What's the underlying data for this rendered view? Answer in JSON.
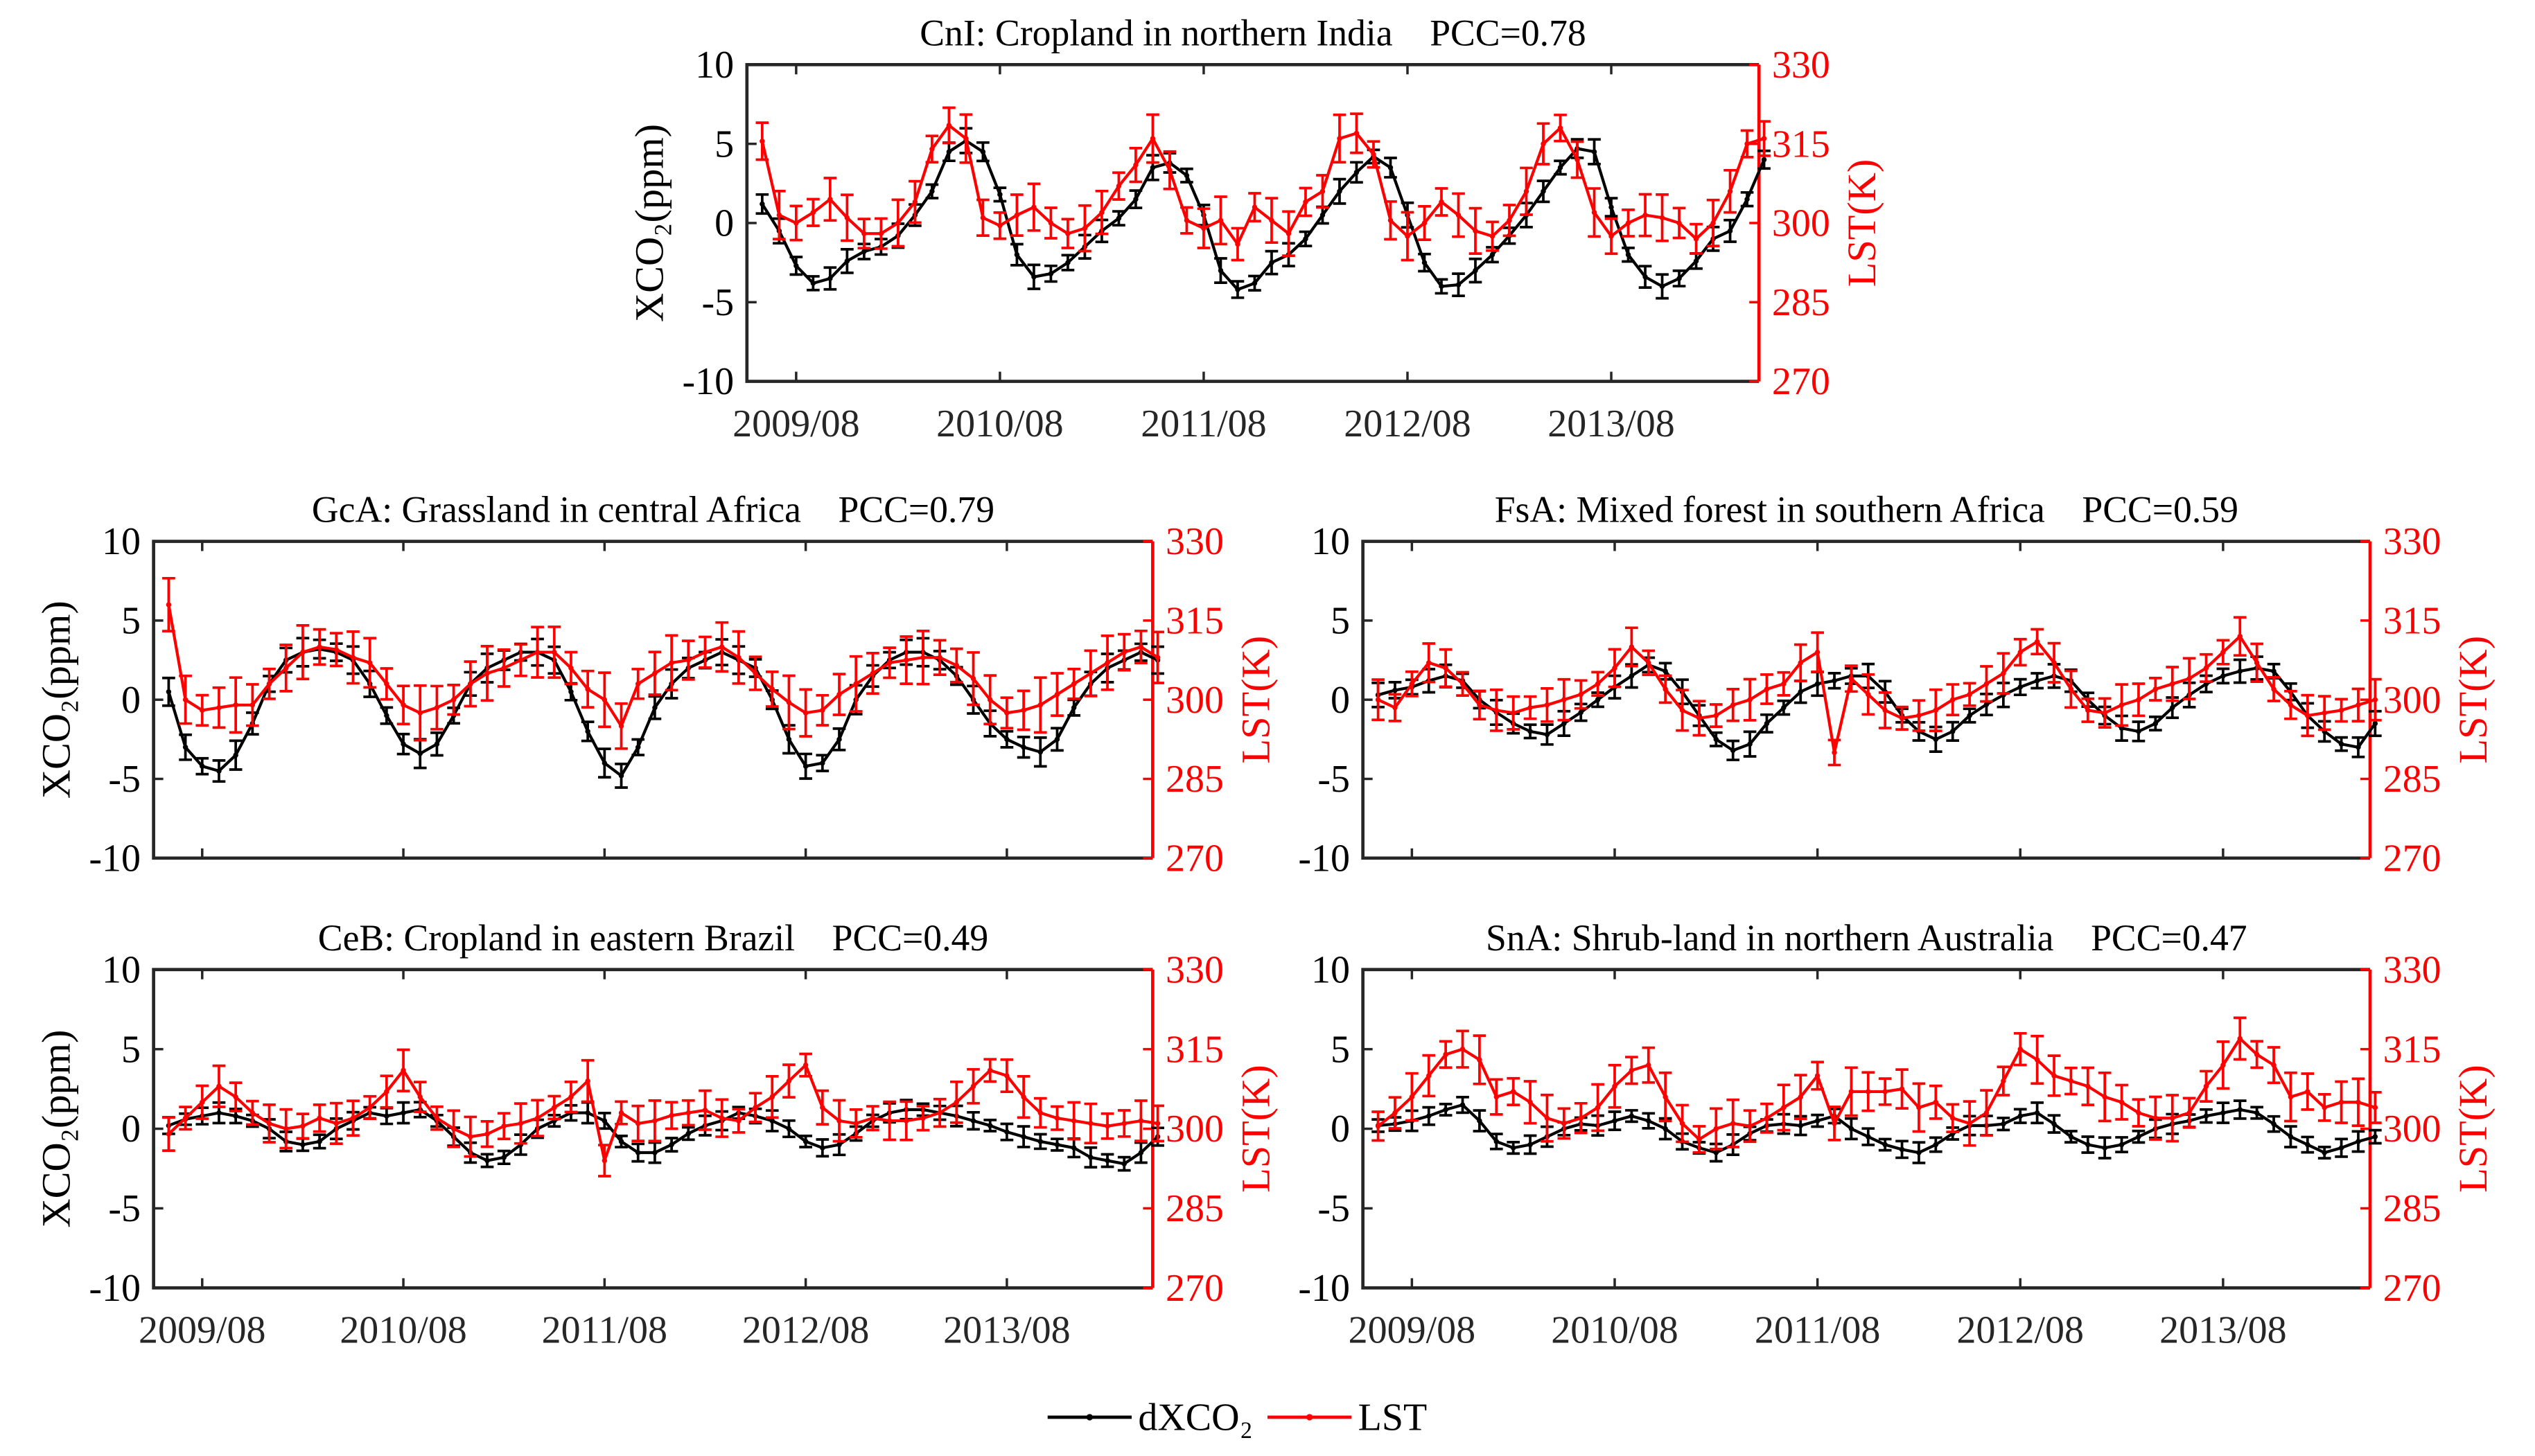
{
  "chart_data": [
    {
      "id": "CnI",
      "type": "line",
      "title": "CnI: Cropland in northern India   PCC=0.78",
      "ylabel": "XCO₂(ppm)",
      "y2label": "LST(K)",
      "ylim": [
        -10,
        10
      ],
      "y2lim": [
        270,
        330
      ],
      "yticks": [
        "10",
        "5",
        "0",
        "-5",
        "-10"
      ],
      "y2ticks": [
        "330",
        "315",
        "300",
        "285",
        "270"
      ],
      "xticks": [
        "2009/08",
        "2010/08",
        "2011/08",
        "2012/08",
        "2013/08"
      ],
      "x_start": "2009/06",
      "x_end": "2014/05",
      "x_unit": "month",
      "series": [
        {
          "name": "dXCO₂",
          "color": "#000000",
          "error": 0.6,
          "values": [
            1.2,
            -0.5,
            -2.7,
            -3.8,
            -3.5,
            -2.4,
            -1.8,
            -1.5,
            -0.8,
            0.5,
            2.0,
            4.5,
            5.2,
            4.5,
            1.8,
            -2.0,
            -3.4,
            -3.2,
            -2.5,
            -1.5,
            -0.5,
            0.3,
            1.5,
            3.5,
            3.8,
            3.0,
            0.5,
            -3.0,
            -4.2,
            -3.8,
            -2.5,
            -2.0,
            -1.0,
            0.5,
            2.0,
            3.2,
            4.2,
            3.5,
            0.5,
            -2.5,
            -4.0,
            -3.9,
            -3.0,
            -2.0,
            -0.8,
            0.5,
            2.0,
            3.5,
            4.7,
            4.5,
            1.0,
            -2.0,
            -3.4,
            -4.0,
            -3.5,
            -2.4,
            -1.0,
            -0.5,
            1.5,
            4.0
          ]
        },
        {
          "name": "LST",
          "color": "#ff0000",
          "error": 3.5,
          "values": [
            315.5,
            301.5,
            300,
            302,
            304.5,
            301,
            298,
            298,
            300,
            304,
            314,
            318.5,
            316,
            301,
            299.5,
            301.5,
            303,
            300,
            298,
            299,
            302,
            307,
            311,
            316,
            310,
            300.5,
            299,
            300.5,
            296,
            303,
            300.5,
            298,
            304,
            306,
            316,
            317,
            313,
            300.5,
            297.5,
            300,
            304,
            301.5,
            298.5,
            297.5,
            300.5,
            306,
            315,
            318,
            312,
            302,
            297.5,
            300,
            301.5,
            301,
            300,
            297,
            300,
            306,
            315,
            316
          ]
        }
      ]
    },
    {
      "id": "GcA",
      "type": "line",
      "title": "GcA: Grassland in central Africa   PCC=0.79",
      "ylabel": "XCO₂(ppm)",
      "y2label": "LST(K)",
      "ylim": [
        -10,
        10
      ],
      "y2lim": [
        270,
        330
      ],
      "yticks": [
        "10",
        "5",
        "0",
        "-5",
        "-10"
      ],
      "y2ticks": [
        "330",
        "315",
        "300",
        "285",
        "270"
      ],
      "xticks": [],
      "x_start": "2009/06",
      "x_end": "2014/05",
      "x_unit": "month",
      "series": [
        {
          "name": "dXCO₂",
          "color": "#000000",
          "error": 0.7,
          "values": [
            0.5,
            -3.0,
            -4.2,
            -4.5,
            -3.5,
            -1.5,
            1.0,
            2.5,
            3.0,
            3.2,
            3.0,
            2.5,
            1.0,
            -1.0,
            -2.8,
            -3.4,
            -2.8,
            -1.0,
            1.0,
            2.0,
            2.5,
            3.0,
            3.0,
            2.5,
            0.5,
            -2.0,
            -4.0,
            -4.8,
            -3.0,
            -0.5,
            1.0,
            2.0,
            2.5,
            3.0,
            2.5,
            2.0,
            0.0,
            -2.5,
            -4.2,
            -4.0,
            -2.5,
            0.0,
            1.5,
            2.5,
            3.0,
            3.0,
            2.5,
            1.5,
            0.0,
            -1.5,
            -2.5,
            -3.0,
            -3.3,
            -2.5,
            -0.5,
            1.0,
            2.0,
            2.5,
            3.0,
            2.5
          ]
        },
        {
          "name": "LST",
          "color": "#ff0000",
          "error": 4.0,
          "values": [
            318,
            300,
            298,
            298.5,
            299,
            299,
            303,
            306,
            309,
            310,
            309.5,
            308,
            307,
            303,
            299,
            297.5,
            298.5,
            300,
            303,
            305,
            306,
            307.5,
            309,
            309,
            306,
            302,
            300,
            295,
            303,
            305,
            307,
            307.5,
            309,
            310,
            308,
            305,
            302,
            299.5,
            297.5,
            298,
            301,
            303,
            305,
            307,
            307.5,
            308,
            308,
            306.5,
            304,
            300,
            297.5,
            298,
            299,
            301,
            303,
            305,
            307,
            309,
            310,
            308
          ]
        }
      ]
    },
    {
      "id": "FsA",
      "type": "line",
      "title": "FsA: Mixed forest in southern Africa   PCC=0.59",
      "ylabel": "",
      "y2label": "LST(K)",
      "ylim": [
        -10,
        10
      ],
      "y2lim": [
        270,
        330
      ],
      "yticks": [
        "10",
        "5",
        "0",
        "-5",
        "-10"
      ],
      "y2ticks": [
        "330",
        "315",
        "300",
        "285",
        "270"
      ],
      "xticks": [],
      "x_start": "2009/06",
      "x_end": "2014/05",
      "x_unit": "month",
      "series": [
        {
          "name": "dXCO₂",
          "color": "#000000",
          "error": 0.6,
          "values": [
            0.3,
            0.6,
            0.8,
            1.2,
            1.5,
            1.2,
            0.0,
            -0.8,
            -1.5,
            -2.0,
            -2.2,
            -1.5,
            -0.8,
            0.0,
            0.8,
            1.5,
            2.2,
            1.8,
            0.5,
            -1.0,
            -2.5,
            -3.2,
            -2.8,
            -1.5,
            -0.5,
            0.5,
            1.0,
            1.2,
            1.5,
            1.5,
            0.5,
            -1.0,
            -2.0,
            -2.5,
            -2.0,
            -1.0,
            -0.3,
            0.3,
            0.8,
            1.2,
            1.5,
            1.2,
            0.0,
            -1.0,
            -1.8,
            -2.0,
            -1.5,
            -0.5,
            0.3,
            1.0,
            1.5,
            1.8,
            2.0,
            1.8,
            0.5,
            -1.0,
            -2.0,
            -2.8,
            -3.0,
            -1.5
          ]
        },
        {
          "name": "LST",
          "color": "#ff0000",
          "error": 3.0,
          "values": [
            300,
            298.5,
            303,
            307,
            306,
            303,
            299,
            298,
            297.5,
            298.5,
            299,
            300,
            301,
            303,
            306,
            310,
            307,
            302,
            298,
            296.5,
            297,
            299,
            300,
            302,
            303,
            307,
            309,
            290,
            304,
            301,
            298,
            296.5,
            297,
            298,
            300,
            301,
            303,
            305,
            309,
            311,
            307,
            302,
            298,
            297.5,
            299,
            300,
            302,
            303,
            304,
            306,
            309,
            312,
            307,
            302,
            299,
            297,
            297.5,
            298,
            299,
            300
          ]
        }
      ]
    },
    {
      "id": "CeB",
      "type": "line",
      "title": "CeB: Cropland in eastern Brazil   PCC=0.49",
      "ylabel": "XCO₂(ppm)",
      "y2label": "LST(K)",
      "ylim": [
        -10,
        10
      ],
      "y2lim": [
        270,
        330
      ],
      "yticks": [
        "10",
        "5",
        "0",
        "-5",
        "-10"
      ],
      "y2ticks": [
        "330",
        "315",
        "300",
        "285",
        "270"
      ],
      "xticks": [
        "2009/08",
        "2010/08",
        "2011/08",
        "2012/08",
        "2013/08"
      ],
      "x_start": "2009/06",
      "x_end": "2014/05",
      "x_unit": "month",
      "series": [
        {
          "name": "dXCO₂",
          "color": "#000000",
          "error": 0.5,
          "values": [
            0.2,
            0.6,
            0.8,
            1.0,
            0.8,
            0.5,
            0.0,
            -0.8,
            -1.0,
            -0.8,
            0.0,
            0.5,
            1.0,
            0.8,
            1.0,
            1.2,
            0.5,
            -0.5,
            -1.5,
            -2.0,
            -1.8,
            -1.0,
            0.0,
            0.5,
            1.0,
            1.0,
            0.5,
            -0.8,
            -1.5,
            -1.5,
            -1.0,
            -0.3,
            0.2,
            0.5,
            1.0,
            0.8,
            0.5,
            0.0,
            -0.8,
            -1.2,
            -1.0,
            -0.3,
            0.5,
            1.0,
            1.2,
            1.2,
            1.0,
            0.8,
            0.5,
            0.2,
            -0.2,
            -0.5,
            -0.8,
            -1.0,
            -1.2,
            -1.8,
            -2.0,
            -2.2,
            -1.5,
            -0.5
          ]
        },
        {
          "name": "LST",
          "color": "#ff0000",
          "error": 3.0,
          "values": [
            299,
            302,
            305,
            308,
            306,
            303,
            301,
            300,
            300.5,
            302,
            301,
            302,
            304,
            307,
            311,
            306,
            302,
            300,
            298.5,
            299,
            300.5,
            301,
            302,
            304,
            306,
            309,
            294,
            303,
            301,
            301.5,
            302.5,
            303,
            303.5,
            302,
            301.5,
            304,
            306,
            309,
            312,
            304,
            301.5,
            301,
            302,
            301.5,
            301.5,
            302,
            303,
            305,
            308,
            311,
            310,
            306,
            303,
            302,
            301.5,
            301,
            300.5,
            301,
            301.5,
            301
          ]
        }
      ]
    },
    {
      "id": "SnA",
      "type": "line",
      "title": "SnA: Shrub-land in northern Australia   PCC=0.47",
      "ylabel": "",
      "y2label": "LST(K)",
      "ylim": [
        -10,
        10
      ],
      "y2lim": [
        270,
        330
      ],
      "yticks": [
        "10",
        "5",
        "0",
        "-5",
        "-10"
      ],
      "y2ticks": [
        "330",
        "315",
        "300",
        "285",
        "270"
      ],
      "xticks": [
        "2009/08",
        "2010/08",
        "2011/08",
        "2012/08",
        "2013/08"
      ],
      "x_start": "2009/06",
      "x_end": "2014/05",
      "x_unit": "month",
      "series": [
        {
          "name": "dXCO₂",
          "color": "#000000",
          "error": 0.5,
          "values": [
            0.2,
            0.3,
            0.5,
            0.8,
            1.2,
            1.5,
            0.5,
            -0.8,
            -1.2,
            -1.0,
            -0.5,
            0.0,
            0.3,
            0.2,
            0.5,
            0.8,
            0.5,
            0.0,
            -0.8,
            -1.2,
            -1.5,
            -1.0,
            -0.3,
            0.2,
            0.3,
            0.2,
            0.5,
            0.8,
            0.0,
            -0.5,
            -1.0,
            -1.3,
            -1.5,
            -1.0,
            -0.3,
            0.2,
            0.2,
            0.3,
            0.8,
            1.0,
            0.3,
            -0.5,
            -1.0,
            -1.2,
            -1.0,
            -0.5,
            0.0,
            0.3,
            0.5,
            0.8,
            1.0,
            1.2,
            1.0,
            0.3,
            -0.5,
            -1.0,
            -1.5,
            -1.2,
            -0.8,
            -0.5
          ]
        },
        {
          "name": "LST",
          "color": "#ff0000",
          "error": 3.5,
          "values": [
            300.5,
            303,
            306,
            310,
            314,
            315,
            313,
            306,
            307,
            305,
            302,
            301,
            302,
            304,
            308,
            311,
            312,
            306,
            301,
            298,
            300,
            301,
            300.5,
            302,
            304,
            306,
            310,
            301,
            307,
            307,
            307,
            307.5,
            304,
            305,
            302,
            301,
            303,
            309,
            315,
            313,
            310,
            309,
            308,
            306,
            305,
            303,
            302,
            302,
            303,
            308,
            312,
            317,
            314,
            312,
            306,
            307,
            304,
            305,
            305,
            304
          ]
        }
      ]
    }
  ],
  "legend": {
    "items": [
      {
        "label": "dXCO₂",
        "color": "#000000"
      },
      {
        "label": "LST",
        "color": "#ff0000"
      }
    ]
  }
}
